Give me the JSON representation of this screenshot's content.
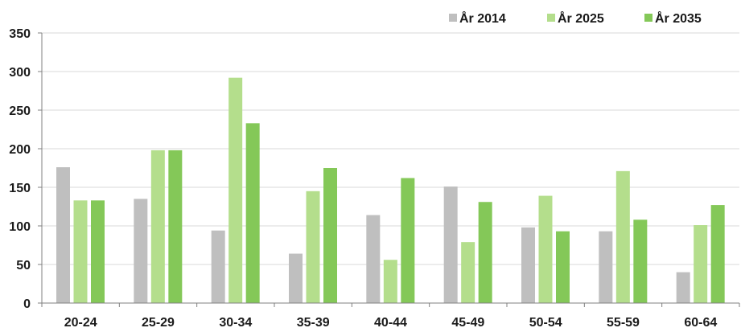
{
  "chart_data": {
    "type": "bar",
    "categories": [
      "20-24",
      "25-29",
      "30-34",
      "35-39",
      "40-44",
      "45-49",
      "50-54",
      "55-59",
      "60-64"
    ],
    "series": [
      {
        "name": "År 2014",
        "color": "#bfbfbf",
        "values": [
          176,
          135,
          94,
          64,
          114,
          151,
          98,
          93,
          40
        ]
      },
      {
        "name": "År 2025",
        "color": "#b4de8c",
        "values": [
          133,
          198,
          292,
          145,
          56,
          79,
          139,
          171,
          101
        ]
      },
      {
        "name": "År 2035",
        "color": "#84c858",
        "values": [
          133,
          198,
          233,
          175,
          162,
          131,
          93,
          108,
          127
        ]
      }
    ],
    "yticks": [
      "0",
      "50",
      "100",
      "150",
      "200",
      "250",
      "300",
      "350"
    ],
    "ylim": [
      0,
      350
    ],
    "grid": true,
    "legend": "top-right"
  }
}
